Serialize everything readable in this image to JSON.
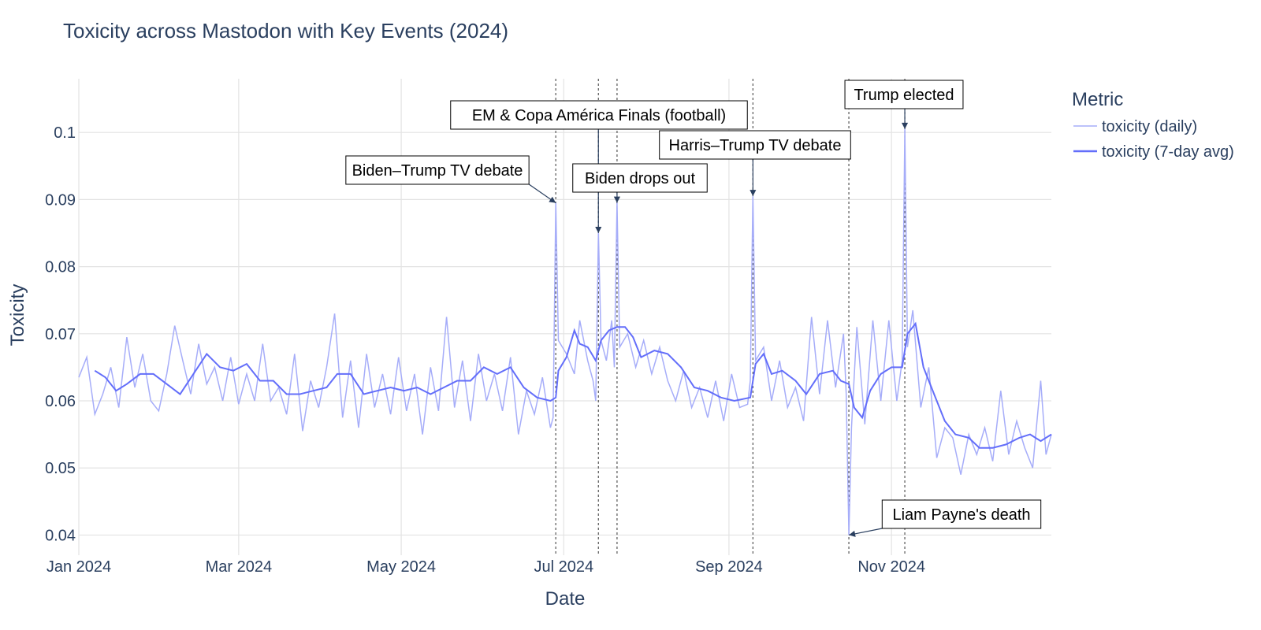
{
  "chart_data": {
    "type": "line",
    "title": "Toxicity across Mastodon with Key Events (2024)",
    "xlabel": "Date",
    "ylabel": "Toxicity",
    "x_range": [
      "2024-01-01",
      "2024-12-31"
    ],
    "ylim": [
      0.037,
      0.108
    ],
    "x_ticks": [
      {
        "date": "2024-01-01",
        "label": "Jan 2024"
      },
      {
        "date": "2024-03-01",
        "label": "Mar 2024"
      },
      {
        "date": "2024-05-01",
        "label": "May 2024"
      },
      {
        "date": "2024-07-01",
        "label": "Jul 2024"
      },
      {
        "date": "2024-09-01",
        "label": "Sep 2024"
      },
      {
        "date": "2024-11-01",
        "label": "Nov 2024"
      }
    ],
    "y_ticks": [
      0.04,
      0.05,
      0.06,
      0.07,
      0.08,
      0.09,
      0.1
    ],
    "y_tick_labels": [
      "0.04",
      "0.05",
      "0.06",
      "0.07",
      "0.08",
      "0.09",
      "0.1"
    ],
    "grid": true,
    "legend": {
      "title": "Metric",
      "placement": "top-right"
    },
    "series": [
      {
        "name": "toxicity (daily)",
        "color": "#a6adf9",
        "sample_every_days": 3,
        "start": "2024-01-01",
        "points": [
          [
            "2024-01-01",
            0.0635
          ],
          [
            "2024-01-04",
            0.0665
          ],
          [
            "2024-01-07",
            0.058
          ],
          [
            "2024-01-10",
            0.061
          ],
          [
            "2024-01-13",
            0.065
          ],
          [
            "2024-01-16",
            0.059
          ],
          [
            "2024-01-19",
            0.0695
          ],
          [
            "2024-01-22",
            0.062
          ],
          [
            "2024-01-25",
            0.067
          ],
          [
            "2024-01-28",
            0.06
          ],
          [
            "2024-01-31",
            0.0585
          ],
          [
            "2024-02-03",
            0.064
          ],
          [
            "2024-02-06",
            0.0712
          ],
          [
            "2024-02-09",
            0.066
          ],
          [
            "2024-02-12",
            0.061
          ],
          [
            "2024-02-15",
            0.0685
          ],
          [
            "2024-02-18",
            0.0625
          ],
          [
            "2024-02-21",
            0.065
          ],
          [
            "2024-02-24",
            0.06
          ],
          [
            "2024-02-27",
            0.0665
          ],
          [
            "2024-03-01",
            0.0595
          ],
          [
            "2024-03-04",
            0.064
          ],
          [
            "2024-03-07",
            0.06
          ],
          [
            "2024-03-10",
            0.0685
          ],
          [
            "2024-03-13",
            0.06
          ],
          [
            "2024-03-16",
            0.062
          ],
          [
            "2024-03-19",
            0.058
          ],
          [
            "2024-03-22",
            0.067
          ],
          [
            "2024-03-25",
            0.0555
          ],
          [
            "2024-03-28",
            0.063
          ],
          [
            "2024-03-31",
            0.059
          ],
          [
            "2024-04-03",
            0.065
          ],
          [
            "2024-04-06",
            0.073
          ],
          [
            "2024-04-09",
            0.0575
          ],
          [
            "2024-04-12",
            0.066
          ],
          [
            "2024-04-15",
            0.056
          ],
          [
            "2024-04-18",
            0.067
          ],
          [
            "2024-04-21",
            0.059
          ],
          [
            "2024-04-24",
            0.064
          ],
          [
            "2024-04-27",
            0.058
          ],
          [
            "2024-04-30",
            0.0665
          ],
          [
            "2024-05-03",
            0.0585
          ],
          [
            "2024-05-06",
            0.064
          ],
          [
            "2024-05-09",
            0.055
          ],
          [
            "2024-05-12",
            0.065
          ],
          [
            "2024-05-15",
            0.0585
          ],
          [
            "2024-05-18",
            0.0725
          ],
          [
            "2024-05-21",
            0.059
          ],
          [
            "2024-05-24",
            0.066
          ],
          [
            "2024-05-27",
            0.057
          ],
          [
            "2024-05-30",
            0.067
          ],
          [
            "2024-06-02",
            0.06
          ],
          [
            "2024-06-05",
            0.064
          ],
          [
            "2024-06-08",
            0.0585
          ],
          [
            "2024-06-11",
            0.0665
          ],
          [
            "2024-06-14",
            0.055
          ],
          [
            "2024-06-17",
            0.0615
          ],
          [
            "2024-06-20",
            0.058
          ],
          [
            "2024-06-23",
            0.0635
          ],
          [
            "2024-06-26",
            0.056
          ],
          [
            "2024-06-27",
            0.0575
          ],
          [
            "2024-06-28",
            0.0895
          ],
          [
            "2024-06-29",
            0.069
          ],
          [
            "2024-07-02",
            0.067
          ],
          [
            "2024-07-05",
            0.064
          ],
          [
            "2024-07-07",
            0.072
          ],
          [
            "2024-07-10",
            0.066
          ],
          [
            "2024-07-12",
            0.063
          ],
          [
            "2024-07-13",
            0.06
          ],
          [
            "2024-07-14",
            0.085
          ],
          [
            "2024-07-15",
            0.069
          ],
          [
            "2024-07-17",
            0.066
          ],
          [
            "2024-07-19",
            0.072
          ],
          [
            "2024-07-20",
            0.065
          ],
          [
            "2024-07-21",
            0.0895
          ],
          [
            "2024-07-22",
            0.068
          ],
          [
            "2024-07-25",
            0.07
          ],
          [
            "2024-07-28",
            0.065
          ],
          [
            "2024-07-31",
            0.069
          ],
          [
            "2024-08-03",
            0.064
          ],
          [
            "2024-08-06",
            0.068
          ],
          [
            "2024-08-09",
            0.063
          ],
          [
            "2024-08-12",
            0.06
          ],
          [
            "2024-08-15",
            0.0645
          ],
          [
            "2024-08-18",
            0.059
          ],
          [
            "2024-08-21",
            0.062
          ],
          [
            "2024-08-24",
            0.0575
          ],
          [
            "2024-08-27",
            0.063
          ],
          [
            "2024-08-30",
            0.057
          ],
          [
            "2024-09-02",
            0.064
          ],
          [
            "2024-09-05",
            0.059
          ],
          [
            "2024-09-08",
            0.0595
          ],
          [
            "2024-09-09",
            0.063
          ],
          [
            "2024-09-10",
            0.0905
          ],
          [
            "2024-09-11",
            0.066
          ],
          [
            "2024-09-14",
            0.068
          ],
          [
            "2024-09-17",
            0.06
          ],
          [
            "2024-09-20",
            0.066
          ],
          [
            "2024-09-23",
            0.059
          ],
          [
            "2024-09-26",
            0.062
          ],
          [
            "2024-09-29",
            0.057
          ],
          [
            "2024-10-02",
            0.0725
          ],
          [
            "2024-10-05",
            0.061
          ],
          [
            "2024-10-08",
            0.072
          ],
          [
            "2024-10-11",
            0.062
          ],
          [
            "2024-10-14",
            0.07
          ],
          [
            "2024-10-15",
            0.061
          ],
          [
            "2024-10-16",
            0.04
          ],
          [
            "2024-10-17",
            0.056
          ],
          [
            "2024-10-19",
            0.071
          ],
          [
            "2024-10-22",
            0.0565
          ],
          [
            "2024-10-25",
            0.072
          ],
          [
            "2024-10-28",
            0.06
          ],
          [
            "2024-10-31",
            0.072
          ],
          [
            "2024-11-03",
            0.06
          ],
          [
            "2024-11-05",
            0.066
          ],
          [
            "2024-11-06",
            0.1005
          ],
          [
            "2024-11-07",
            0.068
          ],
          [
            "2024-11-09",
            0.0735
          ],
          [
            "2024-11-12",
            0.059
          ],
          [
            "2024-11-15",
            0.065
          ],
          [
            "2024-11-18",
            0.0515
          ],
          [
            "2024-11-21",
            0.056
          ],
          [
            "2024-11-24",
            0.0545
          ],
          [
            "2024-11-27",
            0.049
          ],
          [
            "2024-11-30",
            0.055
          ],
          [
            "2024-12-03",
            0.052
          ],
          [
            "2024-12-06",
            0.056
          ],
          [
            "2024-12-09",
            0.051
          ],
          [
            "2024-12-12",
            0.0615
          ],
          [
            "2024-12-15",
            0.052
          ],
          [
            "2024-12-18",
            0.057
          ],
          [
            "2024-12-21",
            0.053
          ],
          [
            "2024-12-24",
            0.05
          ],
          [
            "2024-12-27",
            0.063
          ],
          [
            "2024-12-29",
            0.052
          ],
          [
            "2024-12-31",
            0.055
          ]
        ]
      },
      {
        "name": "toxicity (7-day avg)",
        "color": "#636efa",
        "points": [
          [
            "2024-01-07",
            0.0645
          ],
          [
            "2024-01-11",
            0.0635
          ],
          [
            "2024-01-15",
            0.0615
          ],
          [
            "2024-01-19",
            0.0625
          ],
          [
            "2024-01-24",
            0.064
          ],
          [
            "2024-01-29",
            0.064
          ],
          [
            "2024-02-03",
            0.0625
          ],
          [
            "2024-02-08",
            0.061
          ],
          [
            "2024-02-13",
            0.064
          ],
          [
            "2024-02-18",
            0.067
          ],
          [
            "2024-02-23",
            0.065
          ],
          [
            "2024-02-28",
            0.0645
          ],
          [
            "2024-03-04",
            0.0655
          ],
          [
            "2024-03-09",
            0.063
          ],
          [
            "2024-03-14",
            0.063
          ],
          [
            "2024-03-19",
            0.061
          ],
          [
            "2024-03-24",
            0.061
          ],
          [
            "2024-03-29",
            0.0615
          ],
          [
            "2024-04-03",
            0.062
          ],
          [
            "2024-04-07",
            0.064
          ],
          [
            "2024-04-12",
            0.064
          ],
          [
            "2024-04-17",
            0.061
          ],
          [
            "2024-04-22",
            0.0615
          ],
          [
            "2024-04-27",
            0.062
          ],
          [
            "2024-05-02",
            0.0615
          ],
          [
            "2024-05-07",
            0.062
          ],
          [
            "2024-05-12",
            0.061
          ],
          [
            "2024-05-17",
            0.062
          ],
          [
            "2024-05-22",
            0.063
          ],
          [
            "2024-05-27",
            0.063
          ],
          [
            "2024-06-01",
            0.065
          ],
          [
            "2024-06-06",
            0.064
          ],
          [
            "2024-06-11",
            0.065
          ],
          [
            "2024-06-16",
            0.062
          ],
          [
            "2024-06-21",
            0.0605
          ],
          [
            "2024-06-26",
            0.06
          ],
          [
            "2024-06-28",
            0.0605
          ],
          [
            "2024-06-29",
            0.0645
          ],
          [
            "2024-07-02",
            0.0665
          ],
          [
            "2024-07-05",
            0.0705
          ],
          [
            "2024-07-07",
            0.0685
          ],
          [
            "2024-07-10",
            0.068
          ],
          [
            "2024-07-13",
            0.066
          ],
          [
            "2024-07-15",
            0.069
          ],
          [
            "2024-07-18",
            0.0705
          ],
          [
            "2024-07-21",
            0.071
          ],
          [
            "2024-07-24",
            0.071
          ],
          [
            "2024-07-27",
            0.0695
          ],
          [
            "2024-07-30",
            0.0665
          ],
          [
            "2024-08-04",
            0.0675
          ],
          [
            "2024-08-09",
            0.067
          ],
          [
            "2024-08-14",
            0.065
          ],
          [
            "2024-08-19",
            0.062
          ],
          [
            "2024-08-24",
            0.0615
          ],
          [
            "2024-08-29",
            0.0605
          ],
          [
            "2024-09-03",
            0.06
          ],
          [
            "2024-09-09",
            0.0605
          ],
          [
            "2024-09-11",
            0.0655
          ],
          [
            "2024-09-14",
            0.067
          ],
          [
            "2024-09-17",
            0.064
          ],
          [
            "2024-09-21",
            0.0645
          ],
          [
            "2024-09-26",
            0.063
          ],
          [
            "2024-09-30",
            0.061
          ],
          [
            "2024-10-05",
            0.064
          ],
          [
            "2024-10-10",
            0.0645
          ],
          [
            "2024-10-13",
            0.063
          ],
          [
            "2024-10-16",
            0.0625
          ],
          [
            "2024-10-18",
            0.059
          ],
          [
            "2024-10-21",
            0.0575
          ],
          [
            "2024-10-24",
            0.0615
          ],
          [
            "2024-10-28",
            0.064
          ],
          [
            "2024-11-01",
            0.065
          ],
          [
            "2024-11-05",
            0.065
          ],
          [
            "2024-11-07",
            0.07
          ],
          [
            "2024-11-10",
            0.0715
          ],
          [
            "2024-11-13",
            0.065
          ],
          [
            "2024-11-17",
            0.061
          ],
          [
            "2024-11-21",
            0.057
          ],
          [
            "2024-11-25",
            0.055
          ],
          [
            "2024-11-30",
            0.0545
          ],
          [
            "2024-12-04",
            0.053
          ],
          [
            "2024-12-09",
            0.053
          ],
          [
            "2024-12-14",
            0.0535
          ],
          [
            "2024-12-19",
            0.0545
          ],
          [
            "2024-12-23",
            0.055
          ],
          [
            "2024-12-27",
            0.054
          ],
          [
            "2024-12-31",
            0.055
          ]
        ]
      }
    ],
    "events": [
      {
        "label": "Biden–Trump TV debate",
        "date": "2024-06-28",
        "value": 0.0895
      },
      {
        "label": "EM & Copa América Finals (football)",
        "date": "2024-07-14",
        "value": 0.085
      },
      {
        "label": "Biden drops out",
        "date": "2024-07-21",
        "value": 0.0895
      },
      {
        "label": "Harris–Trump TV debate",
        "date": "2024-09-10",
        "value": 0.0905
      },
      {
        "label": "Liam Payne's death",
        "date": "2024-10-16",
        "value": 0.04
      },
      {
        "label": "Trump elected",
        "date": "2024-11-06",
        "value": 0.1005
      }
    ]
  }
}
